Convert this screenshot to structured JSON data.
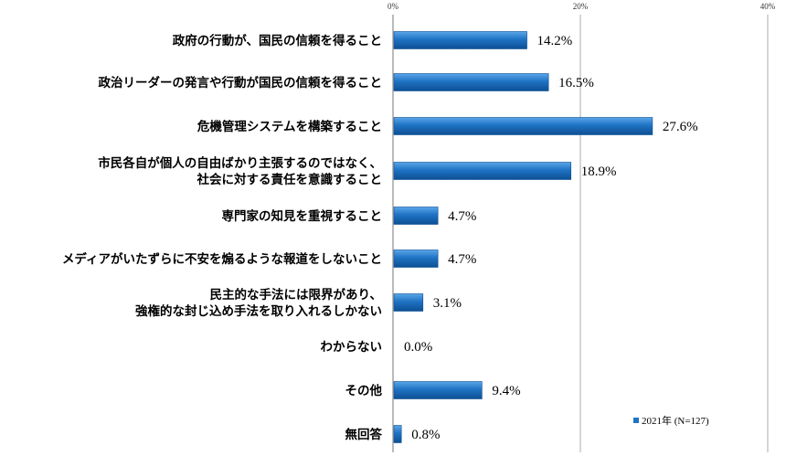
{
  "chart_data": {
    "type": "bar",
    "orientation": "horizontal",
    "categories": [
      [
        "政府の行動が、国民の信頼を得ること"
      ],
      [
        "政治リーダーの発言や行動が国民の信頼を得ること"
      ],
      [
        "危機管理システムを構築すること"
      ],
      [
        "市民各自が個人の自由ばかり主張するのではなく、",
        "社会に対する責任を意識すること"
      ],
      [
        "専門家の知見を重視すること"
      ],
      [
        "メディアがいたずらに不安を煽るような報道をしないこと"
      ],
      [
        "民主的な手法には限界があり、",
        "強権的な封じ込め手法を取り入れるしかない"
      ],
      [
        "わからない"
      ],
      [
        "その他"
      ],
      [
        "無回答"
      ]
    ],
    "series": [
      {
        "name": "2021年 (N=127)",
        "values": [
          14.2,
          16.5,
          27.6,
          18.9,
          4.7,
          4.7,
          3.1,
          0.0,
          9.4,
          0.8
        ],
        "value_labels": [
          "14.2%",
          "16.5%",
          "27.6%",
          "18.9%",
          "4.7%",
          "4.7%",
          "3.1%",
          "0.0%",
          "9.4%",
          "0.8%"
        ]
      }
    ],
    "xlim": [
      0,
      40
    ],
    "x_ticks": [
      0,
      20,
      40
    ],
    "x_tick_labels": [
      "0%",
      "20%",
      "40%"
    ],
    "grid": true,
    "legend_position": "bottom-right",
    "colors": {
      "bar": "#1f73c4",
      "bar_light": "#5aa6e8",
      "bar_dark": "#0d4f94",
      "grid": "#999999"
    }
  }
}
